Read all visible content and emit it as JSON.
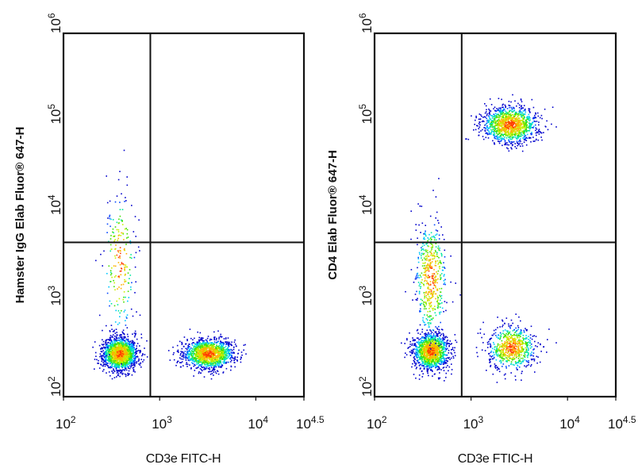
{
  "colors": {
    "axis": "#111111",
    "density": [
      "#0000cc",
      "#0044ff",
      "#00c8ff",
      "#00e8a0",
      "#40e000",
      "#c8f000",
      "#ffb000",
      "#ff3c00"
    ]
  },
  "chart_data": [
    {
      "type": "scatter",
      "xlabel": "CD3e FITC-H",
      "ylabel": "Hamster IgG Elab Fluor® 647-H",
      "x_scale": "log",
      "y_scale": "log",
      "xlim": [
        2,
        4.5
      ],
      "ylim": [
        2,
        6
      ],
      "x_ticks": [
        {
          "base": "10",
          "exp": "2"
        },
        {
          "base": "10",
          "exp": "3"
        },
        {
          "base": "10",
          "exp": "4"
        },
        {
          "base": "10",
          "exp": "4.5"
        }
      ],
      "y_ticks": [
        {
          "base": "10",
          "exp": "2"
        },
        {
          "base": "10",
          "exp": "3"
        },
        {
          "base": "10",
          "exp": "4"
        },
        {
          "base": "10",
          "exp": "5"
        },
        {
          "base": "10",
          "exp": "6"
        }
      ],
      "quadrant_gate": {
        "x": 800,
        "y": 5000
      },
      "populations": [
        {
          "center_x": 380,
          "center_y": 300,
          "count": 1600
        },
        {
          "center_x": 3200,
          "center_y": 300,
          "count": 1400
        },
        {
          "center_x": 380,
          "center_y": 3000,
          "count": 220
        }
      ]
    },
    {
      "type": "scatter",
      "xlabel": "CD3e FTIC-H",
      "ylabel": "CD4 Elab Fluor® 647-H",
      "x_scale": "log",
      "y_scale": "log",
      "xlim": [
        2,
        4.5
      ],
      "ylim": [
        2,
        6
      ],
      "x_ticks": [
        {
          "base": "10",
          "exp": "2"
        },
        {
          "base": "10",
          "exp": "3"
        },
        {
          "base": "10",
          "exp": "4"
        },
        {
          "base": "10",
          "exp": "4.5"
        }
      ],
      "y_ticks": [
        {
          "base": "10",
          "exp": "2"
        },
        {
          "base": "10",
          "exp": "3"
        },
        {
          "base": "10",
          "exp": "4"
        },
        {
          "base": "10",
          "exp": "5"
        },
        {
          "base": "10",
          "exp": "6"
        }
      ],
      "quadrant_gate": {
        "x": 800,
        "y": 5000
      },
      "populations": [
        {
          "center_x": 380,
          "center_y": 320,
          "count": 1300
        },
        {
          "center_x": 380,
          "center_y": 2000,
          "count": 500
        },
        {
          "center_x": 2500,
          "center_y": 100000,
          "count": 1200
        },
        {
          "center_x": 2600,
          "center_y": 350,
          "count": 700
        }
      ]
    }
  ]
}
